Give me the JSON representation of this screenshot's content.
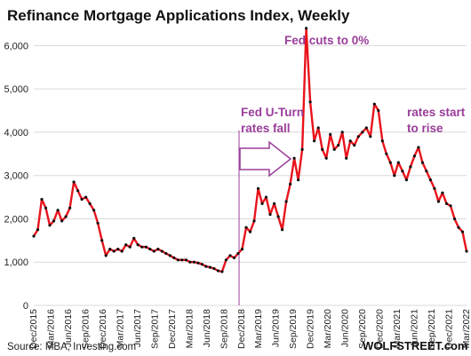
{
  "chart_data": {
    "type": "line",
    "title": "Refinance Mortgage Applications Index, Weekly",
    "xlabel": "",
    "ylabel": "",
    "ylim": [
      0,
      6500
    ],
    "y_ticks": [
      0,
      1000,
      2000,
      3000,
      4000,
      5000,
      6000
    ],
    "y_tick_labels": [
      "0",
      "1,000",
      "2,000",
      "3,000",
      "4,000",
      "5,000",
      "6,000"
    ],
    "x_tick_labels": [
      "Dec/2015",
      "Mar/2016",
      "Jun/2016",
      "Sep/2016",
      "Dec/2016",
      "Mar/2017",
      "Jun/2017",
      "Sep/2017",
      "Dec/2017",
      "Mar/2018",
      "Jun/2018",
      "Sep/2018",
      "Dec/2018",
      "Mar/2019",
      "Jun/2019",
      "Sep/2019",
      "Dec/2019",
      "Mar/2020",
      "Jun/2020",
      "Sep/2020",
      "Dec/2020",
      "Mar/2021",
      "Jun/2021",
      "Sep/2021",
      "Dec/2021",
      "Mar/2022"
    ],
    "grid": true,
    "line_color": "#e8141c",
    "marker_color": "#111111",
    "annotation_color": "#9a3d9a",
    "series": [
      {
        "values": [
          1600,
          1750,
          2450,
          2250,
          1850,
          1950,
          2200,
          1950,
          2050,
          2250,
          2850,
          2650,
          2450,
          2500,
          2350,
          2200,
          1900,
          1500,
          1150,
          1300,
          1250,
          1300,
          1250,
          1400,
          1350,
          1550,
          1400,
          1350,
          1350,
          1300,
          1250,
          1300,
          1250,
          1200,
          1150,
          1100,
          1050,
          1050,
          1050,
          1000,
          1000,
          980,
          950,
          900,
          880,
          850,
          800,
          780,
          1050,
          1150,
          1100,
          1200,
          1300,
          1800,
          1700,
          1950,
          2700,
          2350,
          2500,
          2100,
          2350,
          2050,
          1750,
          2400,
          2800,
          3400,
          2900,
          3600,
          6400,
          4700,
          3800,
          4100,
          3600,
          3400,
          3950,
          3600,
          3700,
          4000,
          3400,
          3800,
          3700,
          3900,
          4000,
          4100,
          3900,
          4650,
          4500,
          3800,
          3500,
          3300,
          3000,
          3300,
          3100,
          2900,
          3200,
          3450,
          3650,
          3300,
          3100,
          2900,
          2700,
          2400,
          2600,
          2350,
          2300,
          2000,
          1800,
          1700,
          1250
        ]
      }
    ],
    "annotations": {
      "fed_uturn_line1": "Fed U-Turn",
      "fed_uturn_line2": "rates fall",
      "fed_cuts": "Fed cuts to 0%",
      "rates_rise_line1": "rates start",
      "rates_rise_line2": "to rise"
    },
    "source": "Source: MBA, Investing.com",
    "brand": "WOLFSTREET.com"
  }
}
